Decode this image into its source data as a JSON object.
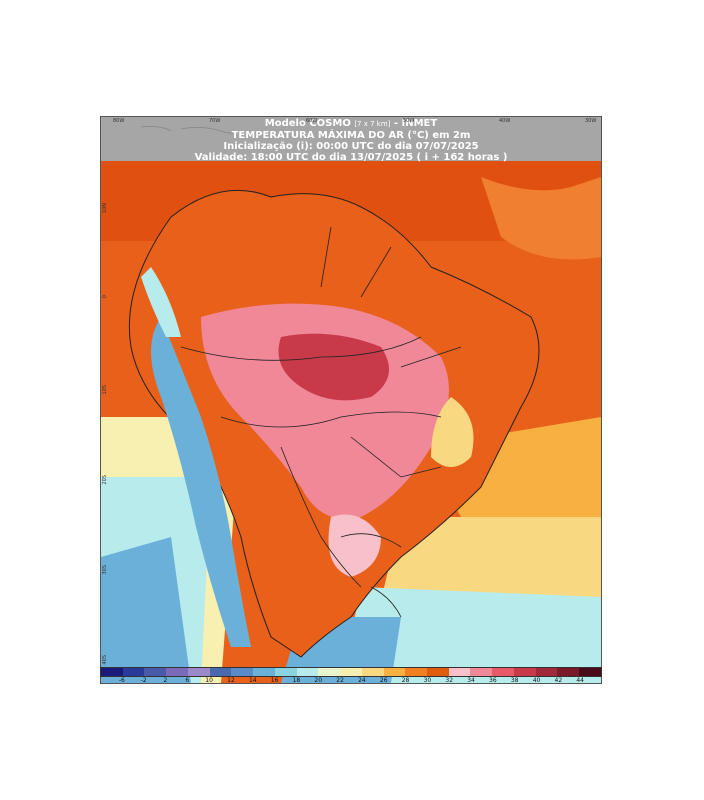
{
  "header": {
    "line1": "Modelo COSMO",
    "resolution": "[7 x 7 km]",
    "line1_suffix": "- INMET",
    "line2": "TEMPERATURA MÁXIMA DO AR (°C) em 2m",
    "line3": "Inicialização (i): 00:00 UTC do dia 07/07/2025",
    "line4": "Validade: 18:00 UTC do dia 13/07/2025 ( i + 162 horas )"
  },
  "lon_labels": [
    "80W",
    "70W",
    "60W",
    "50W",
    "40W",
    "30W"
  ],
  "lat_labels": [
    "10N",
    "0",
    "10S",
    "20S",
    "30S",
    "40S"
  ],
  "colorbar": {
    "labels": [
      "-6",
      "-2",
      "2",
      "6",
      "10",
      "12",
      "14",
      "16",
      "18",
      "20",
      "22",
      "24",
      "26",
      "28",
      "30",
      "32",
      "34",
      "36",
      "38",
      "40",
      "42",
      "44"
    ],
    "colors": [
      "#1a1a7a",
      "#2a3a9a",
      "#4a5aaa",
      "#7a6ab8",
      "#9a8ac8",
      "#4a6ab0",
      "#5a8ac8",
      "#6ab0d8",
      "#8ad4e0",
      "#b8ecec",
      "#e8f6d0",
      "#f8f0b0",
      "#f8d880",
      "#f8b040",
      "#f08020",
      "#e05a10",
      "#f8c0c8",
      "#f08898",
      "#e85a6a",
      "#c83a4a",
      "#a02a3a",
      "#7a1a2a",
      "#4a0a1a"
    ]
  }
}
